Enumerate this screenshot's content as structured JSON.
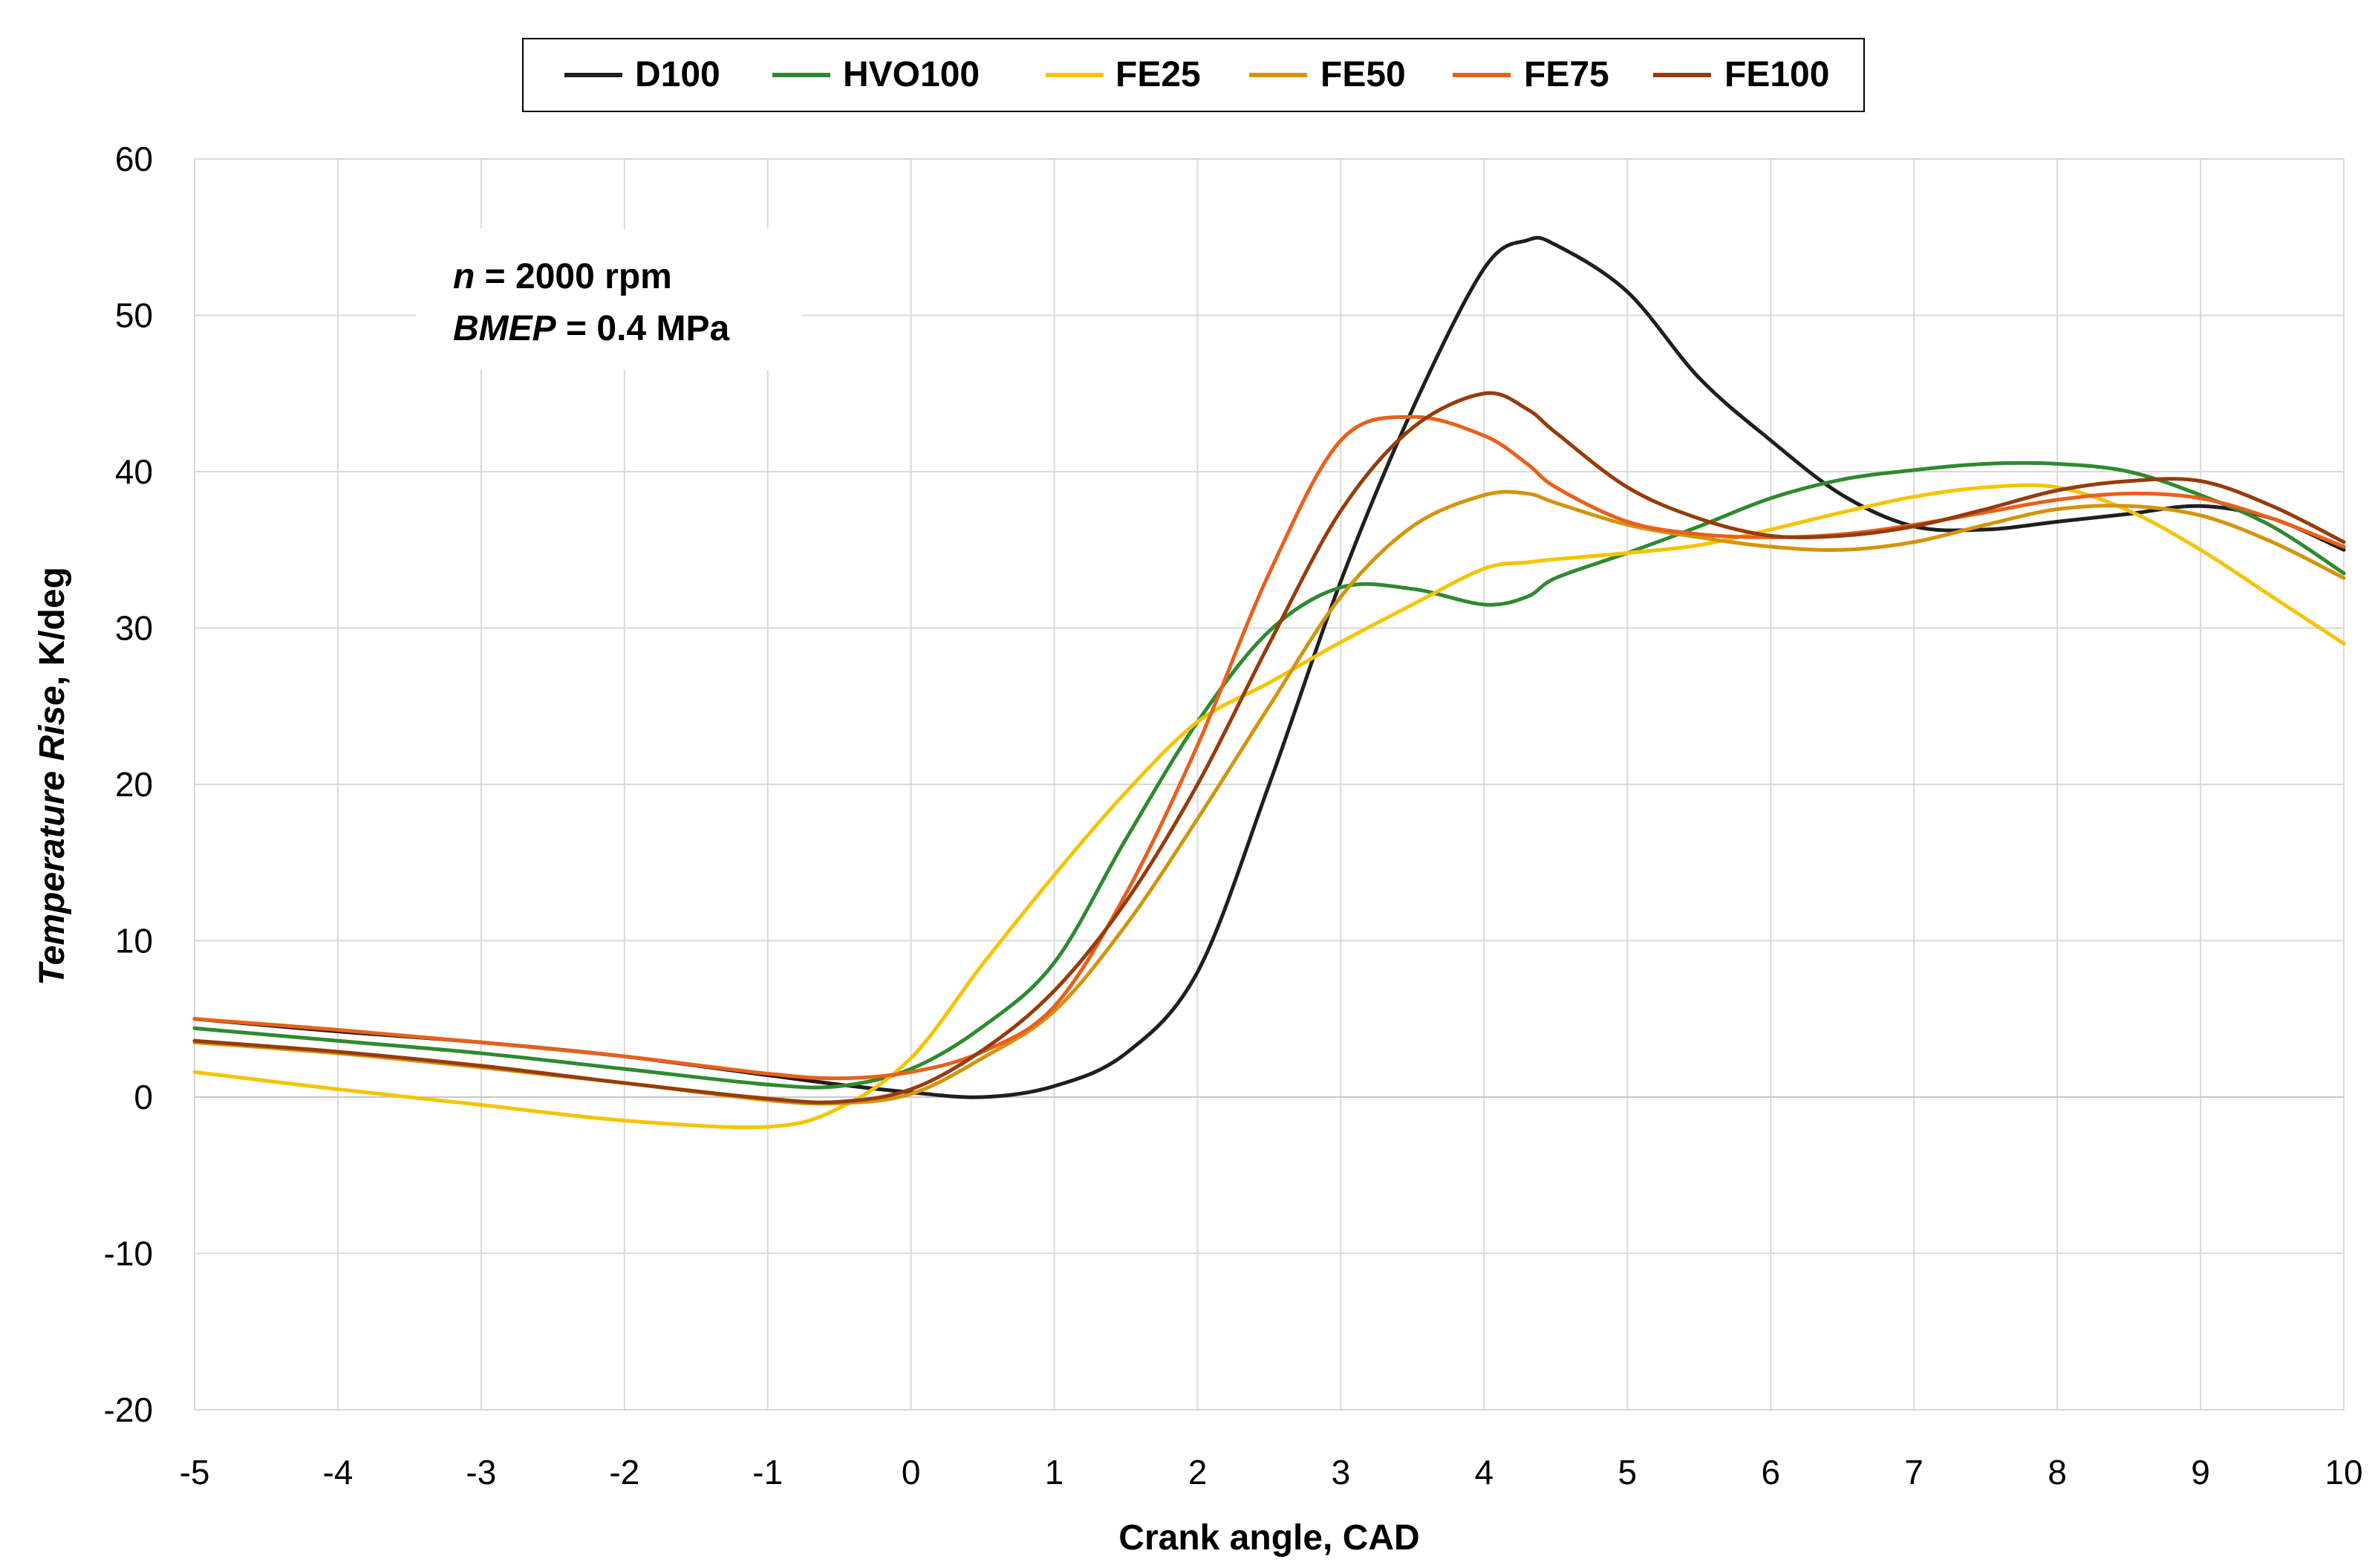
{
  "chart_data": {
    "type": "line",
    "title": "",
    "xlabel": "Crank angle, CAD",
    "ylabel": {
      "prefix": "Temperature Rise",
      "suffix": ", K/deg"
    },
    "xlim": [
      -5,
      10
    ],
    "ylim": [
      -20,
      60
    ],
    "xticks": [
      "-5",
      "-4",
      "-3",
      "-2",
      "-1",
      "0",
      "1",
      "2",
      "3",
      "4",
      "5",
      "6",
      "7",
      "8",
      "9",
      "10"
    ],
    "yticks": [
      "-20",
      "-10",
      "0",
      "10",
      "20",
      "30",
      "40",
      "50",
      "60"
    ],
    "x": [
      -5,
      -4,
      -3,
      -2,
      -1,
      -0.5,
      0,
      0.5,
      1,
      1.5,
      2,
      2.5,
      3,
      3.5,
      4,
      4.3,
      4.5,
      5,
      5.5,
      6,
      6.5,
      7,
      7.5,
      8,
      8.5,
      9,
      9.5,
      10
    ],
    "series": [
      {
        "name": "D100",
        "color": "#1f1f1f",
        "values": [
          5.0,
          4.2,
          3.5,
          2.6,
          1.4,
          0.8,
          0.3,
          0.0,
          0.7,
          2.8,
          8.0,
          20.0,
          33.0,
          44.0,
          53.0,
          54.8,
          54.5,
          51.5,
          46.0,
          42.0,
          38.5,
          36.5,
          36.3,
          36.8,
          37.3,
          37.8,
          37.0,
          35.0
        ]
      },
      {
        "name": "HVO100",
        "color": "#2f8a2f",
        "values": [
          4.4,
          3.6,
          2.8,
          1.8,
          0.8,
          0.7,
          1.8,
          4.5,
          8.6,
          16.5,
          24.0,
          29.8,
          32.6,
          32.5,
          31.5,
          32.0,
          33.2,
          34.8,
          36.5,
          38.3,
          39.5,
          40.1,
          40.5,
          40.5,
          40.0,
          38.5,
          36.5,
          33.5
        ]
      },
      {
        "name": "FE25",
        "color": "#f5c400",
        "values": [
          1.6,
          0.5,
          -0.5,
          -1.5,
          -1.9,
          -0.7,
          2.5,
          8.5,
          14.2,
          19.5,
          24.0,
          26.5,
          29.1,
          31.5,
          33.8,
          34.2,
          34.4,
          34.8,
          35.3,
          36.3,
          37.4,
          38.4,
          39.0,
          39.0,
          37.5,
          35.0,
          32.0,
          29.0
        ]
      },
      {
        "name": "FE50",
        "color": "#d4940c",
        "values": [
          3.5,
          2.8,
          1.9,
          0.9,
          -0.2,
          -0.4,
          0.2,
          2.5,
          5.5,
          11.0,
          17.8,
          25.0,
          32.0,
          36.5,
          38.5,
          38.6,
          38.0,
          36.6,
          35.8,
          35.2,
          35.0,
          35.5,
          36.6,
          37.6,
          37.8,
          37.2,
          35.5,
          33.2
        ]
      },
      {
        "name": "FE75",
        "color": "#e8601c",
        "values": [
          5.0,
          4.3,
          3.5,
          2.6,
          1.5,
          1.2,
          1.6,
          2.9,
          5.8,
          13.0,
          22.5,
          33.5,
          42.0,
          43.5,
          42.3,
          40.5,
          39.0,
          36.8,
          36.0,
          35.8,
          36.0,
          36.6,
          37.4,
          38.2,
          38.6,
          38.3,
          37.0,
          35.2
        ]
      },
      {
        "name": "FE100",
        "color": "#963c0b",
        "values": [
          3.6,
          2.9,
          2.0,
          0.9,
          -0.1,
          -0.3,
          0.5,
          3.0,
          6.8,
          12.5,
          20.0,
          29.0,
          37.5,
          42.8,
          45.0,
          44.0,
          42.5,
          39.0,
          37.0,
          35.9,
          35.9,
          36.5,
          37.6,
          38.8,
          39.4,
          39.4,
          37.8,
          35.5
        ]
      }
    ],
    "legend": {
      "position": "top-center",
      "entries": [
        "D100",
        "HVO100",
        "FE25",
        "FE50",
        "FE75",
        "FE100"
      ]
    },
    "annotation": {
      "line1": {
        "var": "n",
        "text": " = 2000 rpm"
      },
      "line2": {
        "var": "BMEP",
        "text": " = 0.4 MPa"
      }
    },
    "grid": true
  }
}
